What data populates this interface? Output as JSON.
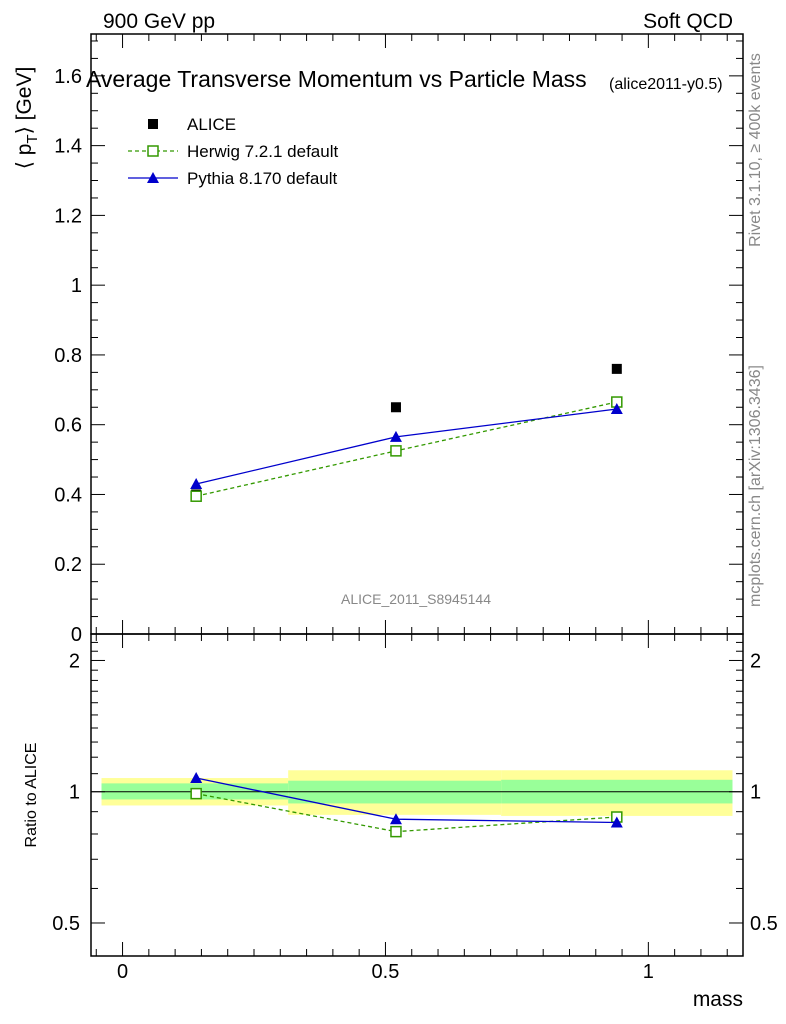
{
  "header": {
    "left": "900 GeV pp",
    "right": "Soft QCD"
  },
  "side_labels": {
    "top": "Rivet 3.1.10, ≥ 400k events",
    "bottom": "mcplots.cern.ch [arXiv:1306.3436]"
  },
  "watermark": "ALICE_2011_S8945144",
  "chart_data": [
    {
      "type": "scatter",
      "title": "Average Transverse Momentum vs Particle Mass",
      "subtitle": "(alice2011-y0.5)",
      "xlabel": "mass",
      "ylabel": "⟨ p_T ⟩ [GeV]",
      "ylabel_parts": {
        "open": "⟨ p",
        "sub": "T",
        "close": "⟩ [GeV]"
      },
      "xlim": [
        -0.06,
        1.18
      ],
      "ylim": [
        0,
        1.72
      ],
      "yticks": [
        0,
        0.2,
        0.4,
        0.6,
        0.8,
        1,
        1.2,
        1.4,
        1.6
      ],
      "ytick_labels": [
        "0",
        "0.2",
        "0.4",
        "0.6",
        "0.8",
        "1",
        "1.2",
        "1.4",
        "1.6"
      ],
      "legend_position": "top-left",
      "series": [
        {
          "name": "ALICE",
          "color": "#000000",
          "marker": "filled-square",
          "line": "none",
          "x": [
            0.14,
            0.52,
            0.94
          ],
          "y": [
            0.4,
            0.65,
            0.76
          ]
        },
        {
          "name": "Herwig 7.2.1 default",
          "color": "#339900",
          "marker": "open-square",
          "line": "dashed",
          "x": [
            0.14,
            0.52,
            0.94
          ],
          "y": [
            0.395,
            0.525,
            0.665
          ]
        },
        {
          "name": "Pythia 8.170 default",
          "color": "#0000cc",
          "marker": "filled-triangle",
          "line": "solid",
          "x": [
            0.14,
            0.52,
            0.94
          ],
          "y": [
            0.43,
            0.565,
            0.645
          ]
        }
      ]
    },
    {
      "type": "line",
      "ylabel": "Ratio to ALICE",
      "xlabel": "mass",
      "xlim": [
        -0.06,
        1.18
      ],
      "ylim": [
        0.42,
        2.3
      ],
      "yscale": "log",
      "yticks": [
        0.5,
        1,
        2
      ],
      "ytick_labels": [
        "0.5",
        "1",
        "2"
      ],
      "xticks": [
        0,
        0.5,
        1
      ],
      "xtick_labels": [
        "0",
        "0.5",
        "1"
      ],
      "reference_line": 1,
      "bands": [
        {
          "x": [
            -0.04,
            0.315
          ],
          "inner": [
            0.96,
            1.045
          ],
          "outer": [
            0.93,
            1.075
          ],
          "inner_color": "#99ff99",
          "outer_color": "#ffff99"
        },
        {
          "x": [
            0.315,
            0.72
          ],
          "inner": [
            0.94,
            1.06
          ],
          "outer": [
            0.885,
            1.12
          ],
          "inner_color": "#99ff99",
          "outer_color": "#ffff99"
        },
        {
          "x": [
            0.72,
            1.16
          ],
          "inner": [
            0.94,
            1.065
          ],
          "outer": [
            0.88,
            1.12
          ],
          "inner_color": "#99ff99",
          "outer_color": "#ffff99"
        }
      ],
      "series": [
        {
          "name": "Herwig 7.2.1 default",
          "color": "#339900",
          "marker": "open-square",
          "line": "dashed",
          "x": [
            0.14,
            0.52,
            0.94
          ],
          "y": [
            0.99,
            0.81,
            0.875
          ]
        },
        {
          "name": "Pythia 8.170 default",
          "color": "#0000cc",
          "marker": "filled-triangle",
          "line": "solid",
          "x": [
            0.14,
            0.52,
            0.94
          ],
          "y": [
            1.075,
            0.865,
            0.85
          ]
        }
      ]
    }
  ]
}
